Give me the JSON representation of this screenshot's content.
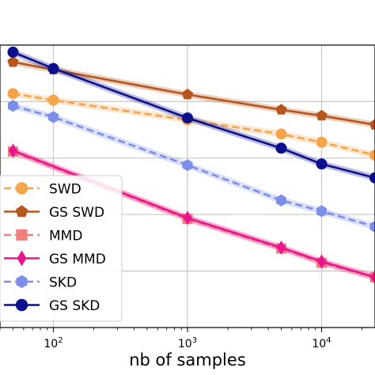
{
  "chart_data": {
    "type": "line",
    "title": "",
    "xlabel": "nb of samples",
    "ylabel": "",
    "x_scale": "log",
    "xlim": [
      40,
      25000
    ],
    "ylim": [
      0,
      1
    ],
    "grid": true,
    "legend_position": "bottom-left",
    "x_ticks": [
      {
        "value": 100,
        "base": "10",
        "exp": "2"
      },
      {
        "value": 1000,
        "base": "10",
        "exp": "3"
      },
      {
        "value": 10000,
        "base": "10",
        "exp": "4"
      }
    ],
    "series": [
      {
        "name": "SWD",
        "color": "#f5a44a",
        "dash": true,
        "marker": "circle",
        "x": [
          50,
          100,
          1000,
          5000,
          10000,
          25000
        ],
        "y": [
          0.828,
          0.805,
          0.735,
          0.685,
          0.656,
          0.61
        ]
      },
      {
        "name": "GS SWD",
        "color": "#b7561c",
        "dash": false,
        "marker": "pentagon",
        "x": [
          50,
          100,
          1000,
          5000,
          10000,
          25000
        ],
        "y": [
          0.94,
          0.913,
          0.825,
          0.771,
          0.75,
          0.718
        ]
      },
      {
        "name": "MMD",
        "color": "#f08080",
        "dash": true,
        "marker": "square",
        "x": [
          50,
          1000,
          5000,
          10000,
          25000
        ],
        "y": [
          0.623,
          0.385,
          0.28,
          0.229,
          0.178
        ]
      },
      {
        "name": "GS MMD",
        "color": "#e8168e",
        "dash": false,
        "marker": "diamond",
        "x": [
          50,
          1000,
          5000,
          10000,
          25000
        ],
        "y": [
          0.626,
          0.388,
          0.283,
          0.234,
          0.178
        ]
      },
      {
        "name": "SKD",
        "color": "#7b8ee8",
        "dash": true,
        "marker": "hexagon",
        "x": [
          50,
          100,
          1000,
          5000,
          10000,
          25000
        ],
        "y": [
          0.785,
          0.745,
          0.575,
          0.45,
          0.412,
          0.357
        ]
      },
      {
        "name": "GS SKD",
        "color": "#0b0f8c",
        "dash": false,
        "marker": "circle",
        "x": [
          50,
          100,
          1000,
          5000,
          10000,
          25000
        ],
        "y": [
          0.975,
          0.917,
          0.742,
          0.635,
          0.579,
          0.53
        ]
      }
    ]
  }
}
